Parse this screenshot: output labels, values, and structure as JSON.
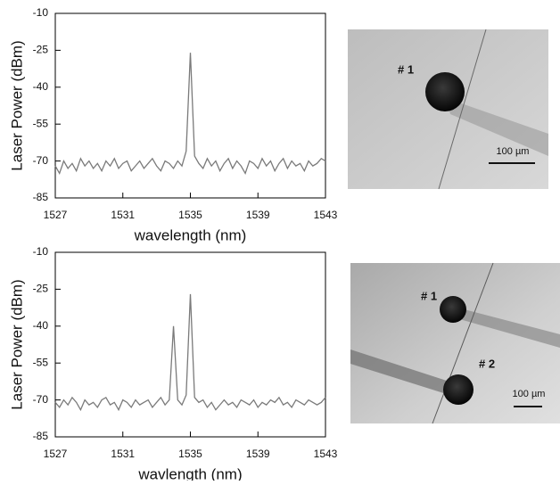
{
  "chart_data": [
    {
      "type": "line",
      "xlabel": "wavelength (nm)",
      "ylabel": "Laser Power (dBm)",
      "color": "#7a7a7a",
      "x": [
        1527,
        1527.25,
        1527.5,
        1527.75,
        1528,
        1528.25,
        1528.5,
        1528.75,
        1529,
        1529.25,
        1529.5,
        1529.75,
        1530,
        1530.25,
        1530.5,
        1530.75,
        1531,
        1531.25,
        1531.5,
        1531.75,
        1532,
        1532.25,
        1532.5,
        1532.75,
        1533,
        1533.25,
        1533.5,
        1533.75,
        1534,
        1534.25,
        1534.5,
        1534.75,
        1535,
        1535.25,
        1535.5,
        1535.75,
        1536,
        1536.25,
        1536.5,
        1536.75,
        1537,
        1537.25,
        1537.5,
        1537.75,
        1538,
        1538.25,
        1538.5,
        1538.75,
        1539,
        1539.25,
        1539.5,
        1539.75,
        1540,
        1540.25,
        1540.5,
        1540.75,
        1541,
        1541.25,
        1541.5,
        1541.75,
        1542,
        1542.25,
        1542.5,
        1542.75,
        1543
      ],
      "values": [
        -72,
        -75,
        -70,
        -73,
        -71,
        -74,
        -69,
        -72,
        -70,
        -73,
        -71,
        -74,
        -70,
        -72,
        -69,
        -73,
        -71,
        -70,
        -74,
        -72,
        -70,
        -73,
        -71,
        -69,
        -72,
        -74,
        -70,
        -71,
        -73,
        -70,
        -72,
        -66,
        -26,
        -68,
        -71,
        -73,
        -69,
        -72,
        -70,
        -74,
        -71,
        -69,
        -73,
        -70,
        -72,
        -75,
        -70,
        -71,
        -73,
        -69,
        -72,
        -70,
        -74,
        -71,
        -69,
        -73,
        -70,
        -72,
        -71,
        -74,
        -70,
        -72,
        -71,
        -69,
        -70
      ],
      "xlim": [
        1527,
        1543
      ],
      "xticks": [
        1527,
        1531,
        1535,
        1539,
        1543
      ],
      "ylim": [
        -85,
        -10
      ],
      "yticks": [
        -10,
        -25,
        -40,
        -55,
        -70,
        -85
      ]
    },
    {
      "type": "line",
      "xlabel": "wavlength (nm)",
      "ylabel": "Laser Power (dBm)",
      "color": "#7a7a7a",
      "x": [
        1527,
        1527.25,
        1527.5,
        1527.75,
        1528,
        1528.25,
        1528.5,
        1528.75,
        1529,
        1529.25,
        1529.5,
        1529.75,
        1530,
        1530.25,
        1530.5,
        1530.75,
        1531,
        1531.25,
        1531.5,
        1531.75,
        1532,
        1532.25,
        1532.5,
        1532.75,
        1533,
        1533.25,
        1533.5,
        1533.75,
        1534,
        1534.25,
        1534.5,
        1534.75,
        1535,
        1535.25,
        1535.5,
        1535.75,
        1536,
        1536.25,
        1536.5,
        1536.75,
        1537,
        1537.25,
        1537.5,
        1537.75,
        1538,
        1538.25,
        1538.5,
        1538.75,
        1539,
        1539.25,
        1539.5,
        1539.75,
        1540,
        1540.25,
        1540.5,
        1540.75,
        1541,
        1541.25,
        1541.5,
        1541.75,
        1542,
        1542.25,
        1542.5,
        1542.75,
        1543
      ],
      "values": [
        -71,
        -73,
        -70,
        -72,
        -69,
        -71,
        -74,
        -70,
        -72,
        -71,
        -73,
        -70,
        -69,
        -72,
        -71,
        -74,
        -70,
        -71,
        -73,
        -70,
        -72,
        -71,
        -70,
        -73,
        -71,
        -69,
        -72,
        -70,
        -40,
        -70,
        -72,
        -68,
        -27,
        -69,
        -71,
        -70,
        -73,
        -71,
        -74,
        -72,
        -70,
        -72,
        -71,
        -73,
        -70,
        -71,
        -72,
        -70,
        -73,
        -71,
        -72,
        -70,
        -71,
        -69,
        -72,
        -71,
        -73,
        -70,
        -71,
        -72,
        -70,
        -71,
        -72,
        -71,
        -69
      ],
      "xlim": [
        1527,
        1543
      ],
      "xticks": [
        1527,
        1531,
        1535,
        1539,
        1543
      ],
      "ylim": [
        -85,
        -10
      ],
      "yticks": [
        -10,
        -25,
        -40,
        -55,
        -70,
        -85
      ]
    }
  ],
  "images": [
    {
      "labels": [
        "# 1"
      ],
      "scale_bar": "100 µm"
    },
    {
      "labels": [
        "# 1",
        "# 2"
      ],
      "scale_bar": "100 µm"
    }
  ]
}
